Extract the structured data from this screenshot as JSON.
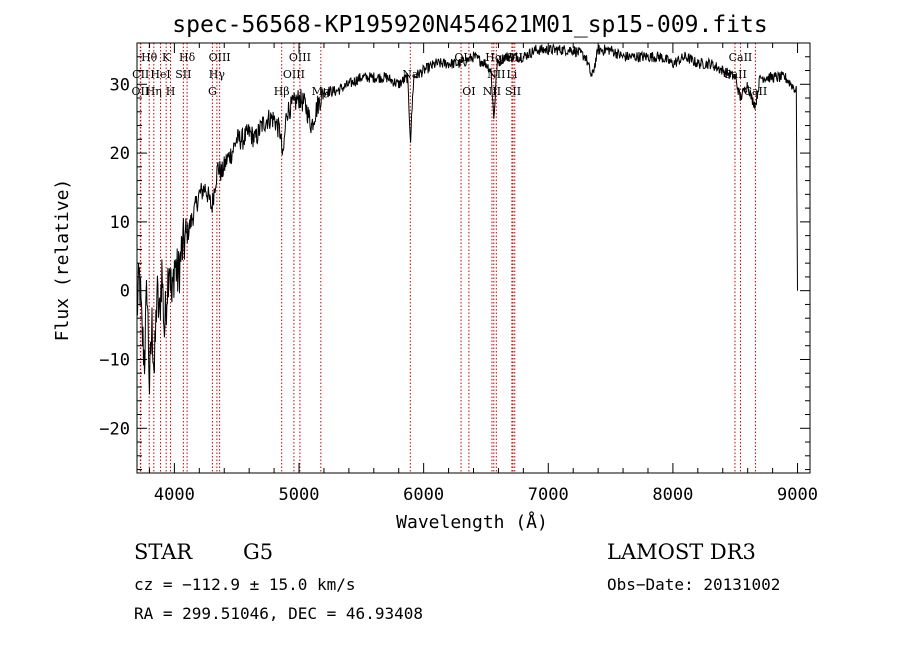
{
  "chart_data": {
    "type": "line",
    "title": "spec-56568-KP195920N454621M01_sp15-009.fits",
    "xlabel": "Wavelength (Å)",
    "ylabel": "Flux (relative)",
    "xlim": [
      3700,
      9100
    ],
    "ylim": [
      -26.5,
      36
    ],
    "xticks": [
      4000,
      5000,
      6000,
      7000,
      8000,
      9000
    ],
    "yticks": [
      -20,
      -10,
      0,
      10,
      20,
      30
    ],
    "xtick_labels": [
      "4000",
      "5000",
      "6000",
      "7000",
      "8000",
      "9000"
    ],
    "ytick_labels": [
      "−20",
      "−10",
      "0",
      "10",
      "20",
      "30"
    ],
    "series": [
      {
        "name": "flux",
        "x": [
          3700,
          3720,
          3740,
          3760,
          3780,
          3800,
          3820,
          3840,
          3860,
          3880,
          3900,
          3920,
          3940,
          3960,
          3980,
          4000,
          4030,
          4060,
          4100,
          4150,
          4200,
          4250,
          4300,
          4330,
          4350,
          4380,
          4420,
          4460,
          4500,
          4550,
          4600,
          4650,
          4700,
          4750,
          4800,
          4850,
          4870,
          4900,
          4950,
          5000,
          5050,
          5100,
          5150,
          5200,
          5300,
          5400,
          5500,
          5600,
          5700,
          5800,
          5870,
          5895,
          5920,
          6000,
          6100,
          6200,
          6300,
          6400,
          6500,
          6540,
          6563,
          6590,
          6650,
          6700,
          6800,
          6900,
          7000,
          7100,
          7200,
          7300,
          7350,
          7400,
          7500,
          7600,
          7700,
          7800,
          7900,
          8000,
          8100,
          8200,
          8300,
          8400,
          8500,
          8540,
          8600,
          8630,
          8662,
          8700,
          8800,
          8900,
          8950,
          8990,
          9000
        ],
        "y": [
          -3,
          2,
          -6,
          -10,
          1,
          -14,
          -5,
          -12,
          0,
          -4,
          3,
          -6,
          0,
          5,
          -2,
          4,
          2,
          6,
          8,
          11,
          14,
          15,
          12,
          16,
          18,
          17,
          19,
          20,
          22,
          22,
          23,
          22,
          24,
          25,
          25,
          23,
          19,
          26,
          27,
          28,
          27,
          24,
          27,
          29,
          29,
          30,
          31,
          31,
          31,
          30,
          31,
          22,
          31,
          32,
          33,
          33,
          33,
          34,
          33,
          32,
          25,
          33,
          34,
          34,
          34,
          35,
          35,
          35,
          35,
          34,
          31,
          35,
          35,
          34,
          34,
          34,
          34,
          33,
          34,
          33,
          33,
          32,
          31,
          28,
          30,
          28,
          27,
          31,
          31,
          31,
          30,
          29,
          0
        ]
      }
    ],
    "annotations": [
      {
        "label": "Hθ",
        "x": 3798,
        "row": 1,
        "color": "#cc0000"
      },
      {
        "label": "CII",
        "x": 3730,
        "row": 2,
        "color": "#cc0000"
      },
      {
        "label": "OII",
        "x": 3727,
        "row": 3,
        "color": "#cc0000"
      },
      {
        "label": "Hη",
        "x": 3835,
        "row": 3,
        "color": "#cc0000"
      },
      {
        "label": "HeI",
        "x": 3889,
        "row": 2,
        "color": "#cc0000"
      },
      {
        "label": "K",
        "x": 3934,
        "row": 1,
        "color": "#cc0000"
      },
      {
        "label": "H",
        "x": 3969,
        "row": 3,
        "color": "#cc0000"
      },
      {
        "label": "SII",
        "x": 4072,
        "row": 2,
        "color": "#cc0000"
      },
      {
        "label": "Hδ",
        "x": 4102,
        "row": 1,
        "color": "#cc0000"
      },
      {
        "label": "G",
        "x": 4305,
        "row": 3,
        "color": "#cc0000"
      },
      {
        "label": "Hγ",
        "x": 4341,
        "row": 2,
        "color": "#cc0000"
      },
      {
        "label": "OIII",
        "x": 4363,
        "row": 1,
        "color": "#cc0000"
      },
      {
        "label": "Hβ",
        "x": 4861,
        "row": 3,
        "color": "#cc0000"
      },
      {
        "label": "OIII",
        "x": 4959,
        "row": 2,
        "color": "#cc0000"
      },
      {
        "label": "OIII",
        "x": 5007,
        "row": 1,
        "color": "#cc0000"
      },
      {
        "label": "Mg",
        "x": 5175,
        "row": 3,
        "color": "#cc0000"
      },
      {
        "label": "Na",
        "x": 5893,
        "row": 2,
        "color": "#cc0000"
      },
      {
        "label": "OI",
        "x": 6300,
        "row": 1,
        "color": "#cc0000"
      },
      {
        "label": "OI",
        "x": 6363,
        "row": 3,
        "color": "#cc0000"
      },
      {
        "label": "NII",
        "x": 6548,
        "row": 3,
        "color": "#cc0000"
      },
      {
        "label": "Hα",
        "x": 6563,
        "row": 1,
        "color": "#cc0000"
      },
      {
        "label": "NII",
        "x": 6583,
        "row": 2,
        "color": "#cc0000"
      },
      {
        "label": "Li",
        "x": 6708,
        "row": 2,
        "color": "#cc0000"
      },
      {
        "label": "SII",
        "x": 6717,
        "row": 3,
        "color": "#cc0000"
      },
      {
        "label": "SII",
        "x": 6731,
        "row": 1,
        "color": "#cc0000"
      },
      {
        "label": "CaII",
        "x": 8498,
        "row": 2,
        "color": "#cc0000"
      },
      {
        "label": "CaII",
        "x": 8542,
        "row": 1,
        "color": "#cc0000"
      },
      {
        "label": "CaII",
        "x": 8662,
        "row": 3,
        "color": "#cc0000"
      }
    ]
  },
  "info": {
    "class": "STAR",
    "subclass": "G5",
    "survey": "LAMOST DR3",
    "cz": "cz = −112.9 ± 15.0 km/s",
    "obsdate": "Obs−Date: 20131002",
    "radec": "RA = 299.51046, DEC =  46.93408"
  },
  "colors": {
    "line": "#000000",
    "marker": "#cc0000",
    "annotation_text": "#000000"
  }
}
